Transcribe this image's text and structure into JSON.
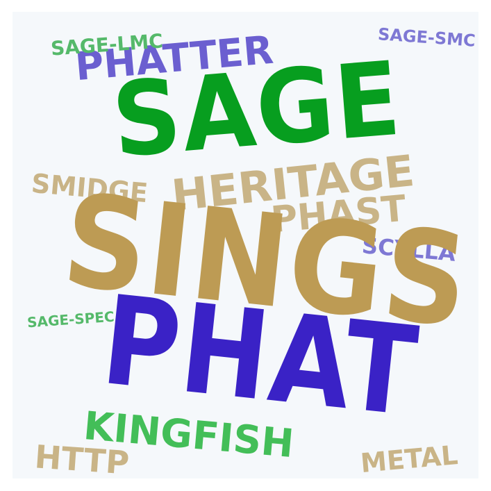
{
  "words": {
    "sage": {
      "text": "SAGE",
      "color": "#079e1f"
    },
    "sings": {
      "text": "SINGS",
      "color": "#bd9b54"
    },
    "phat": {
      "text": "PHAT",
      "color": "#3a22c6"
    },
    "heritage": {
      "text": "HERITAGE",
      "color": "#c9b487"
    },
    "phast": {
      "text": "PHAST",
      "color": "#c9b487"
    },
    "phatter": {
      "text": "PHATTER",
      "color": "#6b5fd0"
    },
    "kingfish": {
      "text": "KINGFISH",
      "color": "#43be58"
    },
    "smidge": {
      "text": "SMIDGE",
      "color": "#c9b487"
    },
    "sage_lmc": {
      "text": "SAGE-LMC",
      "color": "#55b96a"
    },
    "sage_smc": {
      "text": "SAGE-SMC",
      "color": "#7e78d4"
    },
    "scylla": {
      "text": "SCYLLA",
      "color": "#7e78d4"
    },
    "sage_spec": {
      "text": "SAGE-SPEC",
      "color": "#55b96a"
    },
    "http": {
      "text": "HTTP",
      "color": "#c9b487"
    },
    "metal": {
      "text": "METAL",
      "color": "#c9b487"
    }
  },
  "background_color": "#f5f8fb"
}
